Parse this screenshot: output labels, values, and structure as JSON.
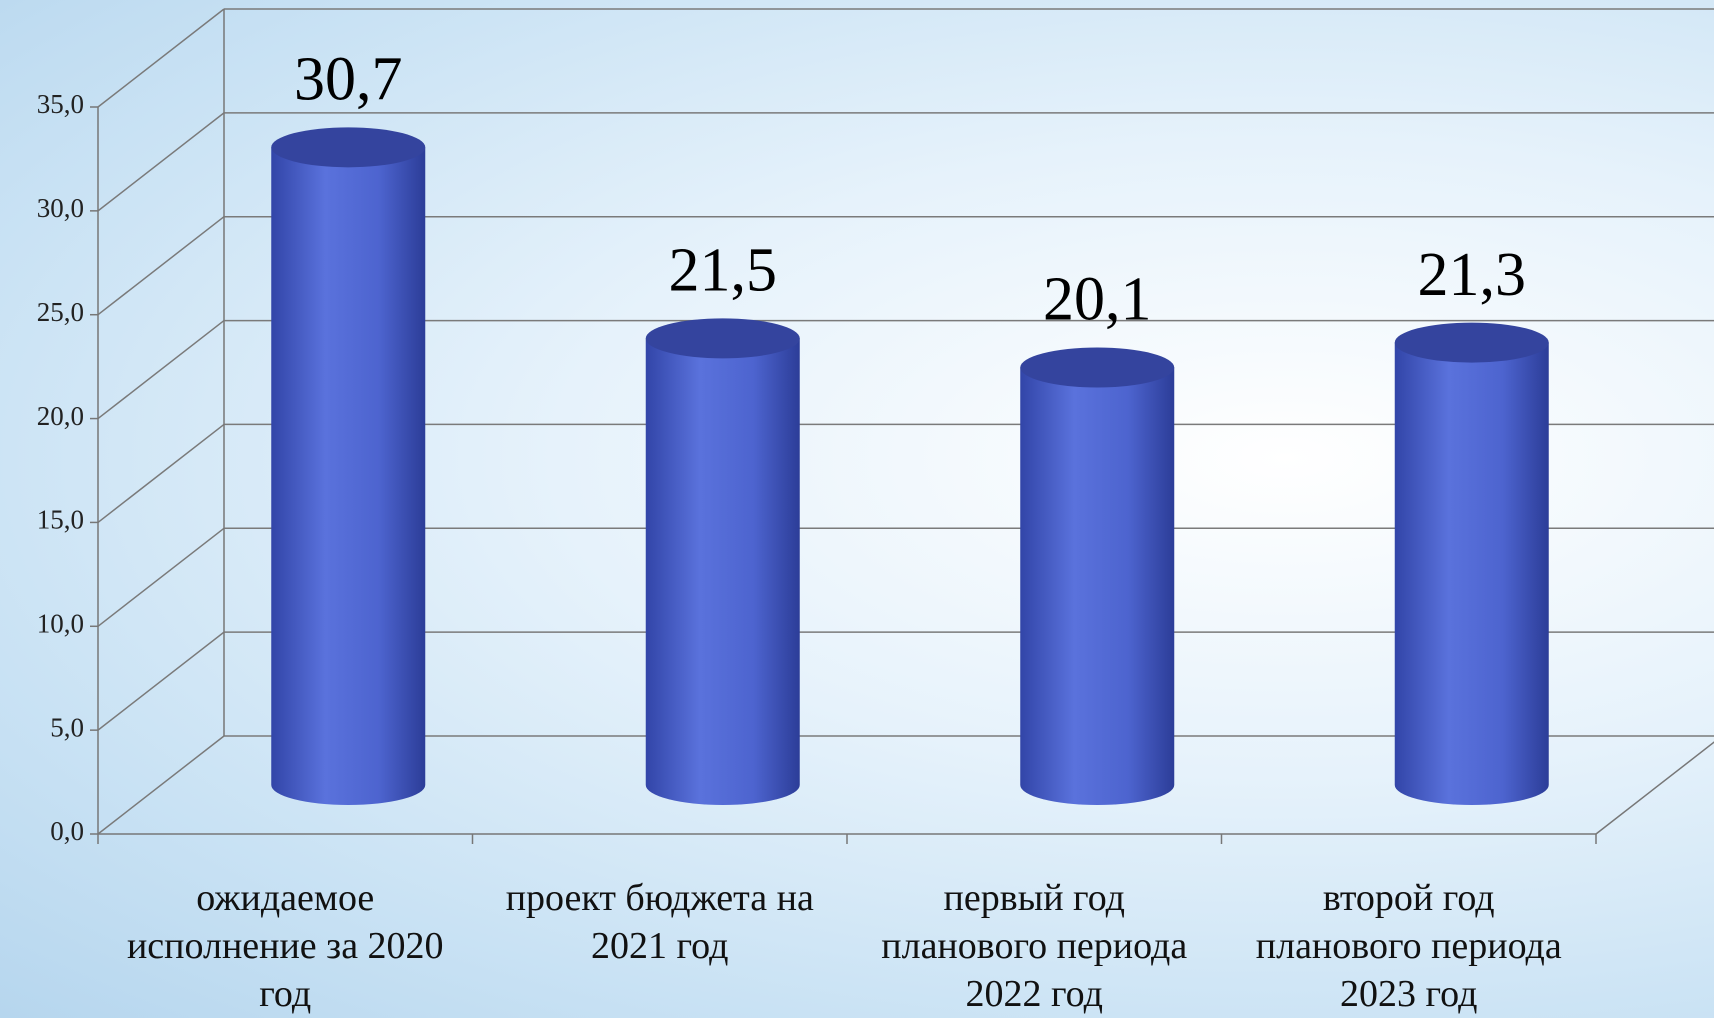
{
  "chart_data": {
    "type": "bar3d",
    "categories": [
      "ожидаемое исполнение за 2020 год",
      "проект бюджета на 2021 год",
      "первый год планового периода 2022 год",
      "второй год планового периода 2023 год"
    ],
    "values": [
      30.7,
      21.5,
      20.1,
      21.3
    ],
    "value_labels": [
      "30,7",
      "21,5",
      "20,1",
      "21,3"
    ],
    "color": "#4f67d3",
    "ylim": [
      0,
      35
    ],
    "yticks": [
      {
        "value": 0,
        "label": "0,0"
      },
      {
        "value": 5,
        "label": "5,0"
      },
      {
        "value": 10,
        "label": "10,0"
      },
      {
        "value": 15,
        "label": "15,0"
      },
      {
        "value": 20,
        "label": "20,0"
      },
      {
        "value": 25,
        "label": "25,0"
      },
      {
        "value": 30,
        "label": "30,0"
      },
      {
        "value": 35,
        "label": "35,0"
      }
    ],
    "grid": true
  }
}
